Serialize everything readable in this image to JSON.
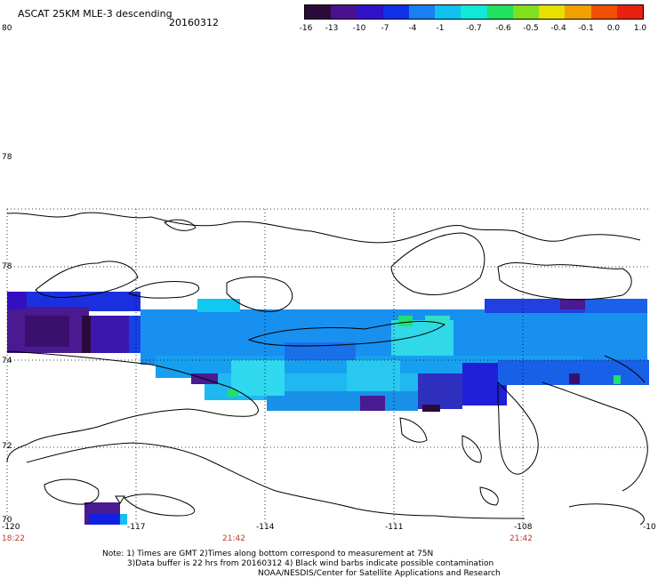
{
  "header": {
    "title": "ASCAT 25KM MLE-3 descending",
    "date": "20160312",
    "corner_label": "80"
  },
  "colorbar": {
    "labels": [
      "-16",
      "-13",
      "-10",
      "-7",
      "-4",
      "-1",
      "-0.7",
      "-0.6",
      "-0.5",
      "-0.4",
      "-0.1",
      "0.0",
      "1.0"
    ],
    "colors": [
      "#2a0a3a",
      "#4b1090",
      "#3010c8",
      "#1030e8",
      "#1880f0",
      "#10c0f0",
      "#10e8d8",
      "#20e060",
      "#80e020",
      "#e8e000",
      "#f0a000",
      "#f05000",
      "#e82010"
    ]
  },
  "map": {
    "lat_labels": [
      "78",
      "78",
      "74",
      "72",
      "70"
    ],
    "lon_labels": [
      "-120",
      "-117",
      "-114",
      "-111",
      "-108",
      "-10"
    ],
    "time_labels": [
      "18:22",
      "21:42",
      "21:42"
    ]
  },
  "footer": {
    "note1": "Note: 1) Times are GMT 2)Times along bottom correspond to measurement at 75N",
    "note2": "3)Data buffer is 22 hrs from 20160312 4) Black wind barbs indicate possible contamination",
    "note3": "NOAA/NESDIS/Center for Satellite Applications and Research"
  }
}
